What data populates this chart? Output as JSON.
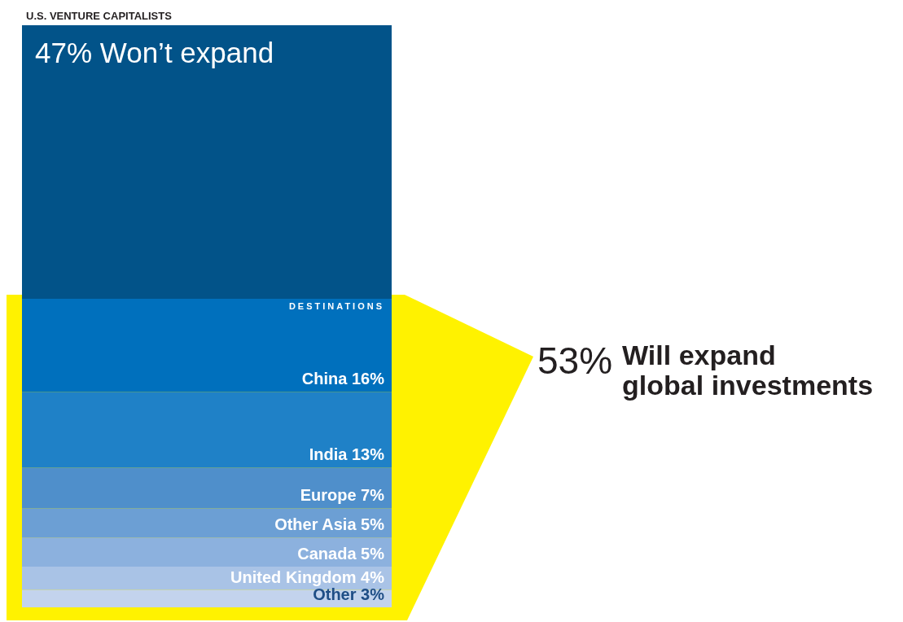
{
  "chart_data": {
    "type": "bar",
    "stacked": true,
    "title": "U.S. VENTURE CAPITALISTS",
    "categories": [
      null
    ],
    "annotations": [
      "DESTINATIONS",
      "53% Will expand\nglobal investments"
    ],
    "series": [
      {
        "color": "#c3d3ed",
        "values": [
          3
        ],
        "value_labels": [
          "Other 3%"
        ]
      },
      {
        "color": "#a9c3e6",
        "values": [
          4
        ],
        "value_labels": [
          "United Kingdom 4%"
        ]
      },
      {
        "color": "#8cb1de",
        "values": [
          5
        ],
        "value_labels": [
          "Canada 5%"
        ]
      },
      {
        "color": "#6c9fd4",
        "values": [
          5
        ],
        "value_labels": [
          "Other Asia 5%"
        ]
      },
      {
        "color": "#4f8fcb",
        "values": [
          7
        ],
        "value_labels": [
          "Europe 7%"
        ]
      },
      {
        "color": "#1f81c7",
        "values": [
          13
        ],
        "value_labels": [
          "India 13%"
        ]
      },
      {
        "color": "#0070bd",
        "values": [
          16
        ],
        "value_labels": [
          "China 16%"
        ]
      },
      {
        "color": "#025389",
        "values": [
          47
        ],
        "value_labels": [
          "47% Won’t expand"
        ]
      }
    ],
    "tick_labels": false
  }
}
